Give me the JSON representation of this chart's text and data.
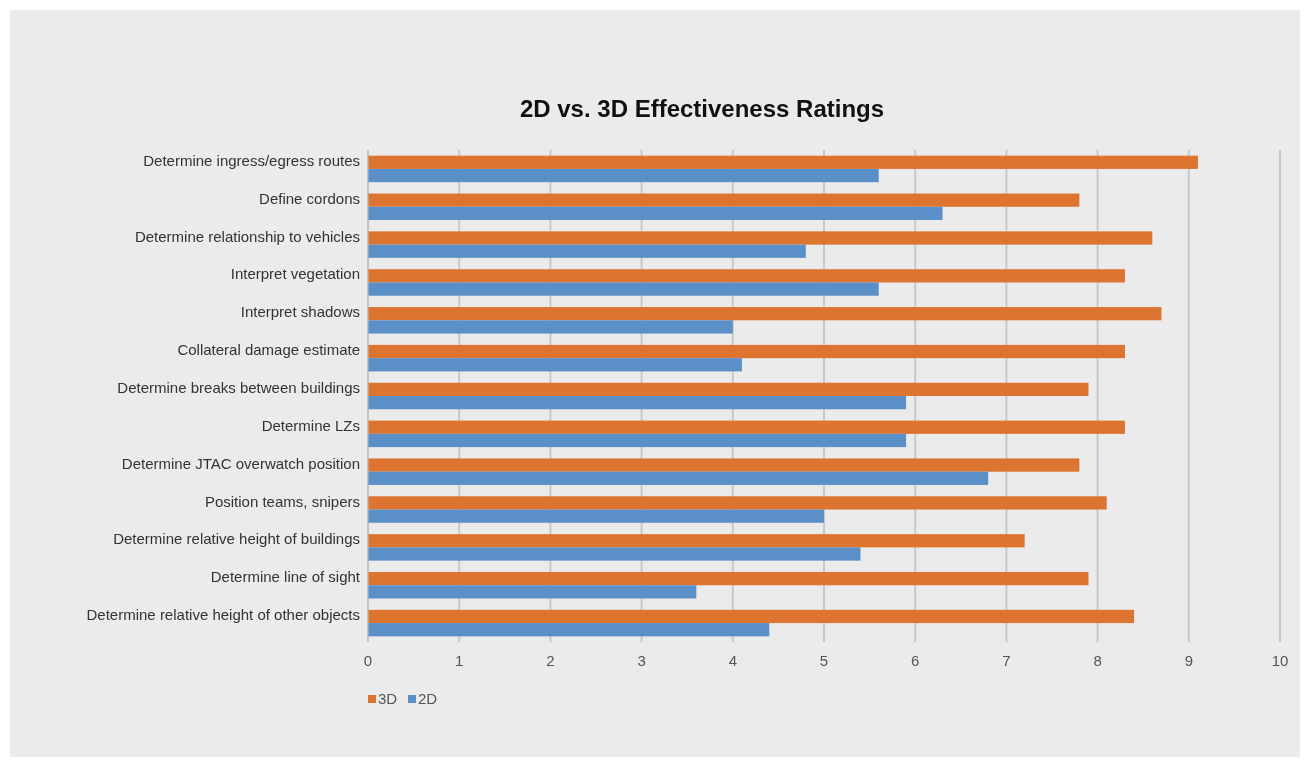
{
  "chart_data": {
    "type": "bar",
    "orientation": "horizontal",
    "title": "2D vs. 3D Effectiveness Ratings",
    "categories": [
      "Determine ingress/egress routes",
      "Define cordons",
      "Determine relationship to vehicles",
      "Interpret vegetation",
      "Interpret shadows",
      "Collateral damage estimate",
      "Determine breaks between buildings",
      "Determine LZs",
      "Determine JTAC overwatch position",
      "Position teams, snipers",
      "Determine relative height of buildings",
      "Determine line of sight",
      "Determine relative height of other objects"
    ],
    "series": [
      {
        "name": "3D",
        "color": "#dd7430",
        "values": [
          9.1,
          7.8,
          8.6,
          8.3,
          8.7,
          8.3,
          7.9,
          8.3,
          7.8,
          8.1,
          7.2,
          7.9,
          8.4
        ]
      },
      {
        "name": "2D",
        "color": "#5b8fc8",
        "values": [
          5.6,
          6.3,
          4.8,
          5.6,
          4.0,
          4.1,
          5.9,
          5.9,
          6.8,
          5.0,
          5.4,
          3.6,
          4.4
        ]
      }
    ],
    "xlim": [
      0,
      10
    ],
    "xticks": [
      0,
      1,
      2,
      3,
      4,
      5,
      6,
      7,
      8,
      9,
      10
    ],
    "grid": "x",
    "legend": "bottom left"
  }
}
